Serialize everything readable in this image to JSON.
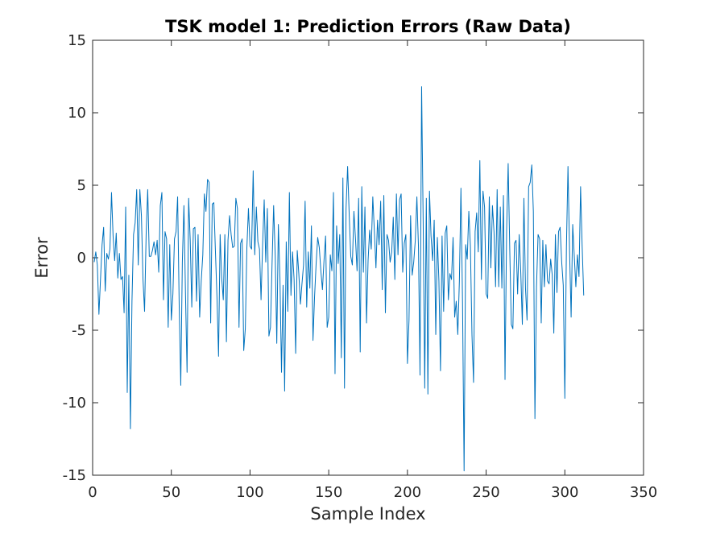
{
  "chart_data": {
    "type": "line",
    "title": "TSK model 1: Prediction Errors (Raw Data)",
    "xlabel": "Sample Index",
    "ylabel": "Error",
    "xlim": [
      0,
      350
    ],
    "ylim": [
      -15,
      15
    ],
    "xticks": [
      0,
      50,
      100,
      150,
      200,
      250,
      300,
      350
    ],
    "yticks": [
      -15,
      -10,
      -5,
      0,
      5,
      10,
      15
    ],
    "xtick_labels": [
      "0",
      "50",
      "100",
      "150",
      "200",
      "250",
      "300",
      "350"
    ],
    "ytick_labels": [
      "-15",
      "-10",
      "-5",
      "0",
      "5",
      "10",
      "15"
    ],
    "grid": false,
    "line_color": "#0072bd",
    "series": [
      {
        "values": [
          -0.3,
          0.4,
          -0.5,
          -3.9,
          -1.5,
          0.9,
          2.1,
          -2.3,
          0.3,
          -0.1,
          0.6,
          4.5,
          1.5,
          -0.2,
          1.7,
          -1.4,
          0.3,
          -1.5,
          -1.3,
          -3.8,
          3.5,
          -9.3,
          -1.2,
          -11.8,
          -3.0,
          1.6,
          2.4,
          4.7,
          -0.5,
          4.7,
          2.9,
          -1.5,
          -3.7,
          1.6,
          4.7,
          0.1,
          0.1,
          0.5,
          1.1,
          0.2,
          1.2,
          -1.0,
          3.6,
          4.5,
          -2.9,
          1.8,
          1.3,
          -4.8,
          0.9,
          -4.3,
          -2.5,
          1.3,
          1.8,
          4.2,
          -3.3,
          -8.8,
          -0.3,
          3.6,
          -2.5,
          -7.9,
          4.1,
          1.2,
          -3.4,
          2.0,
          2.1,
          -3.0,
          1.6,
          -4.1,
          -1.6,
          0.2,
          4.4,
          3.2,
          5.4,
          5.2,
          -4.5,
          3.7,
          3.8,
          0.5,
          -2.7,
          -6.8,
          1.6,
          -1.4,
          -2.9,
          1.6,
          -5.8,
          1.2,
          2.9,
          1.6,
          0.7,
          0.8,
          4.1,
          3.4,
          -4.8,
          1.0,
          1.3,
          -6.4,
          -4.9,
          0.7,
          3.4,
          0.8,
          0.6,
          6.0,
          0.2,
          3.5,
          1.1,
          0.6,
          -2.9,
          0.9,
          4.0,
          -0.3,
          3.4,
          -5.4,
          -4.8,
          -0.4,
          3.6,
          0.1,
          -5.9,
          2.3,
          -1.4,
          -7.9,
          -1.9,
          -9.2,
          1.1,
          -3.7,
          4.5,
          -2.6,
          0.4,
          -1.5,
          -6.6,
          0.5,
          -1.1,
          -3.2,
          -1.8,
          -0.5,
          3.9,
          -3.4,
          0.4,
          -2.1,
          2.2,
          -5.7,
          -2.7,
          -0.4,
          1.4,
          0.7,
          -0.9,
          -2.2,
          -0.2,
          1.5,
          -4.8,
          -4.1,
          0.2,
          -0.9,
          4.5,
          -8.0,
          2.2,
          -0.4,
          1.6,
          -6.9,
          5.5,
          -9.0,
          3.4,
          6.3,
          3.0,
          0.1,
          -0.5,
          3.2,
          1.3,
          -0.9,
          4.1,
          -6.5,
          4.9,
          -1.0,
          3.5,
          -4.5,
          -0.2,
          1.9,
          0.6,
          4.2,
          1.8,
          -0.7,
          2.6,
          0.9,
          3.9,
          -2.2,
          4.3,
          -3.8,
          1.6,
          1.2,
          -0.3,
          0.4,
          2.8,
          -1.5,
          4.4,
          0.2,
          4.0,
          4.4,
          -1.0,
          1.0,
          1.6,
          -7.3,
          -4.3,
          2.9,
          -1.2,
          -0.3,
          1.2,
          4.2,
          0.8,
          -8.1,
          11.8,
          2.5,
          -9.0,
          4.1,
          -9.4,
          4.6,
          1.5,
          -0.2,
          2.6,
          -5.3,
          1.4,
          -1.6,
          -7.8,
          1.5,
          -3.7,
          1.7,
          2.2,
          -2.9,
          -1.1,
          -1.5,
          1.4,
          -4.1,
          -3.0,
          -5.3,
          -1.6,
          4.8,
          -3.1,
          -14.7,
          0.9,
          -0.1,
          3.2,
          0.8,
          -5.3,
          -8.6,
          1.8,
          3.1,
          0.4,
          6.7,
          -1.5,
          4.6,
          3.5,
          -2.5,
          -2.8,
          4.2,
          -0.7,
          3.6,
          1.8,
          -2.0,
          4.7,
          -2.0,
          3.5,
          -2.1,
          4.3,
          -8.4,
          1.8,
          6.5,
          0.6,
          -4.6,
          -4.9,
          1.0,
          1.2,
          -2.5,
          1.6,
          -1.0,
          -4.6,
          4.1,
          -2.1,
          -4.3,
          4.9,
          5.2,
          6.4,
          3.2,
          -11.1,
          -2.0,
          1.6,
          1.3,
          -4.5,
          1.2,
          -2.0,
          0.9,
          -1.6,
          -1.8,
          -0.1,
          -1.2,
          -5.2,
          1.6,
          -2.4,
          1.8,
          2.1,
          -0.3,
          -1.9,
          -9.7,
          0.7,
          6.3,
          0.5,
          -4.1,
          2.3,
          0.1,
          -2.0,
          0.2,
          -1.3,
          4.9,
          0.8,
          -2.6
        ]
      }
    ]
  }
}
